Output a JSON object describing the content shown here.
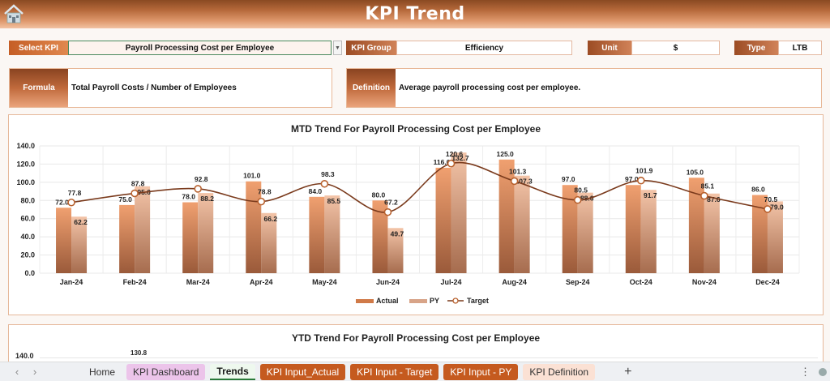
{
  "header": {
    "title": "KPI Trend",
    "home_icon": "home-icon"
  },
  "filters": {
    "select_kpi_label": "Select KPI",
    "select_kpi_value": "Payroll Processing Cost per Employee",
    "kpi_group_label": "KPI Group",
    "kpi_group_value": "Efficiency",
    "unit_label": "Unit",
    "unit_value": "$",
    "type_label": "Type",
    "type_value": "LTB"
  },
  "info": {
    "formula_label": "Formula",
    "formula_value": "Total Payroll Costs / Number of Employees",
    "definition_label": "Definition",
    "definition_value": "Average payroll processing cost per employee."
  },
  "colors": {
    "actual": "#e0884f",
    "py": "#e9b392",
    "target_line": "#7a3a1c",
    "accent": "#c55a1f"
  },
  "chart_data": [
    {
      "type": "bar",
      "title": "MTD Trend For Payroll Processing Cost per Employee",
      "xlabel": "",
      "ylabel": "",
      "ylim": [
        0,
        140
      ],
      "yticks": [
        "0.0",
        "20.0",
        "40.0",
        "60.0",
        "80.0",
        "100.0",
        "120.0",
        "140.0"
      ],
      "grid": true,
      "legend_position": "bottom",
      "categories": [
        "Jan-24",
        "Feb-24",
        "Mar-24",
        "Apr-24",
        "May-24",
        "Jun-24",
        "Jul-24",
        "Aug-24",
        "Sep-24",
        "Oct-24",
        "Nov-24",
        "Dec-24"
      ],
      "series": [
        {
          "name": "Actual",
          "type": "bar",
          "values": [
            72.0,
            75.0,
            78.0,
            101.0,
            84.0,
            80.0,
            116.0,
            125.0,
            97.0,
            97.0,
            105.0,
            86.0
          ]
        },
        {
          "name": "PY",
          "type": "bar",
          "values": [
            62.2,
            95.6,
            88.2,
            66.2,
            85.5,
            49.7,
            132.7,
            107.3,
            88.6,
            91.7,
            87.6,
            79.0
          ]
        },
        {
          "name": "Target",
          "type": "line",
          "values": [
            77.8,
            87.8,
            92.8,
            78.8,
            98.3,
            67.2,
            120.6,
            101.3,
            80.5,
            101.9,
            85.1,
            70.5
          ]
        }
      ]
    },
    {
      "type": "bar",
      "title": "YTD Trend For Payroll Processing Cost per Employee",
      "ylim": [
        0,
        140
      ],
      "yticks": [
        "140.0"
      ],
      "visible_labels": [
        "130.8"
      ],
      "partial": true
    }
  ],
  "tabs": [
    {
      "label": "Home",
      "style": "plain"
    },
    {
      "label": "KPI Dashboard",
      "style": "pink"
    },
    {
      "label": "Trends",
      "style": "active"
    },
    {
      "label": "KPI Input_Actual",
      "style": "orange"
    },
    {
      "label": "KPI Input - Target",
      "style": "orange"
    },
    {
      "label": "KPI Input - PY",
      "style": "orange"
    },
    {
      "label": "KPI Definition",
      "style": "peach"
    }
  ],
  "tabbar": {
    "prev": "‹",
    "next": "›",
    "add": "+",
    "more": "⋮"
  }
}
